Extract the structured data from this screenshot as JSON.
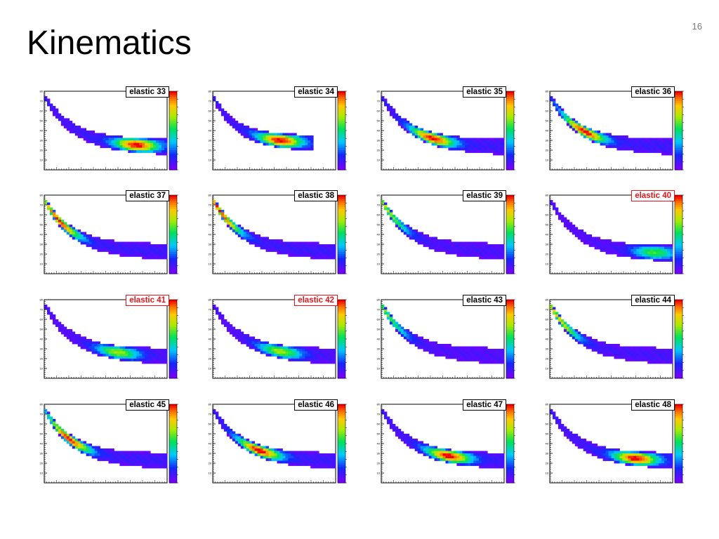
{
  "slide": {
    "title": "Kinematics",
    "page_number": "16"
  },
  "chart_data": {
    "type": "heatmap",
    "layout": "4x4 grid of 2D histograms",
    "colormap": "rainbow (violet to red), palette bar on right of each panel",
    "highlight_color": "#e8141b",
    "panels": [
      {
        "title": "elastic 33",
        "highlight": false,
        "band": {
          "start_y": 75,
          "end_y": 23,
          "x_end": 1.0,
          "hot_at": 0.75,
          "intensity": 1.0
        }
      },
      {
        "title": "elastic 34",
        "highlight": false,
        "band": {
          "start_y": 75,
          "end_y": 27,
          "x_end": 0.82,
          "hot_at": 0.55,
          "intensity": 1.0
        }
      },
      {
        "title": "elastic 35",
        "highlight": false,
        "band": {
          "start_y": 75,
          "end_y": 23,
          "x_end": 1.0,
          "hot_at": 0.42,
          "intensity": 1.0
        }
      },
      {
        "title": "elastic 36",
        "highlight": false,
        "band": {
          "start_y": 75,
          "end_y": 23,
          "x_end": 1.0,
          "hot_at": 0.28,
          "intensity": 1.0
        }
      },
      {
        "title": "elastic 37",
        "highlight": false,
        "band": {
          "start_y": 75,
          "end_y": 22,
          "x_end": 1.0,
          "hot_at": 0.12,
          "intensity": 1.0
        }
      },
      {
        "title": "elastic 38",
        "highlight": false,
        "band": {
          "start_y": 75,
          "end_y": 22,
          "x_end": 1.0,
          "hot_at": 0.06,
          "intensity": 1.0
        }
      },
      {
        "title": "elastic 39",
        "highlight": false,
        "band": {
          "start_y": 75,
          "end_y": 22,
          "x_end": 1.0,
          "hot_at": 0.05,
          "intensity": 0.7
        }
      },
      {
        "title": "elastic 40",
        "highlight": true,
        "band": {
          "start_y": 75,
          "end_y": 20,
          "x_end": 1.0,
          "hot_at": 0.85,
          "intensity": 0.55
        }
      },
      {
        "title": "elastic 41",
        "highlight": true,
        "band": {
          "start_y": 75,
          "end_y": 22,
          "x_end": 1.0,
          "hot_at": 0.6,
          "intensity": 0.65
        }
      },
      {
        "title": "elastic 42",
        "highlight": true,
        "band": {
          "start_y": 75,
          "end_y": 22,
          "x_end": 1.0,
          "hot_at": 0.55,
          "intensity": 0.65
        }
      },
      {
        "title": "elastic 43",
        "highlight": false,
        "band": {
          "start_y": 75,
          "end_y": 22,
          "x_end": 1.0,
          "hot_at": 0.05,
          "intensity": 0.6
        }
      },
      {
        "title": "elastic 44",
        "highlight": false,
        "band": {
          "start_y": 75,
          "end_y": 22,
          "x_end": 1.0,
          "hot_at": 0.07,
          "intensity": 0.8
        }
      },
      {
        "title": "elastic 45",
        "highlight": false,
        "band": {
          "start_y": 75,
          "end_y": 22,
          "x_end": 1.0,
          "hot_at": 0.2,
          "intensity": 1.0
        }
      },
      {
        "title": "elastic 46",
        "highlight": false,
        "band": {
          "start_y": 75,
          "end_y": 22,
          "x_end": 1.0,
          "hot_at": 0.38,
          "intensity": 1.0
        }
      },
      {
        "title": "elastic 47",
        "highlight": false,
        "band": {
          "start_y": 75,
          "end_y": 22,
          "x_end": 1.0,
          "hot_at": 0.55,
          "intensity": 1.0
        }
      },
      {
        "title": "elastic 48",
        "highlight": false,
        "band": {
          "start_y": 75,
          "end_y": 22,
          "x_end": 1.0,
          "hot_at": 0.7,
          "intensity": 1.0
        }
      }
    ],
    "y_ticks": [
      "80",
      "70",
      "60",
      "50",
      "40",
      "30",
      "20",
      "10"
    ],
    "ylim": [
      0,
      80
    ],
    "grid": false
  }
}
